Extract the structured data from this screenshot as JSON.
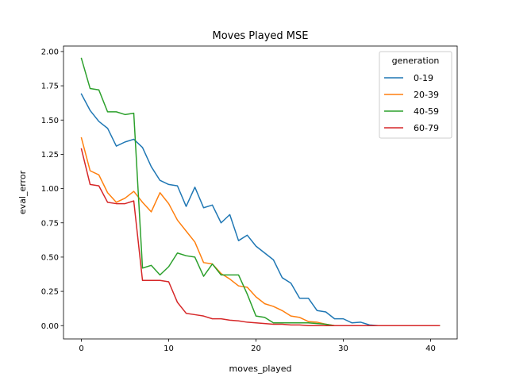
{
  "chart_data": {
    "type": "line",
    "title": "Moves Played MSE",
    "xlabel": "moves_played",
    "ylabel": "eval_error",
    "xlim": [
      -2.05,
      43.05
    ],
    "ylim": [
      -0.097,
      2.04
    ],
    "xticks": [
      0,
      10,
      20,
      30,
      40
    ],
    "xtick_labels": [
      "0",
      "10",
      "20",
      "30",
      "40"
    ],
    "yticks": [
      0,
      0.25,
      0.5,
      0.75,
      1.0,
      1.25,
      1.5,
      1.75,
      2.0
    ],
    "ytick_labels": [
      "0.00",
      "0.25",
      "0.50",
      "0.75",
      "1.00",
      "1.25",
      "1.50",
      "1.75",
      "2.00"
    ],
    "grid": false,
    "legend": {
      "title": "generation",
      "placement": "top-right"
    },
    "x": [
      0,
      1,
      2,
      3,
      4,
      5,
      6,
      7,
      8,
      9,
      10,
      11,
      12,
      13,
      14,
      15,
      16,
      17,
      18,
      19,
      20,
      21,
      22,
      23,
      24,
      25,
      26,
      27,
      28,
      29,
      30,
      31,
      32,
      33,
      34,
      35,
      36,
      37,
      38,
      39,
      40,
      41
    ],
    "series": [
      {
        "name": "0-19",
        "color": "#1f77b4",
        "values": [
          1.69,
          1.57,
          1.49,
          1.44,
          1.31,
          1.34,
          1.36,
          1.3,
          1.16,
          1.06,
          1.03,
          1.02,
          0.87,
          1.01,
          0.86,
          0.88,
          0.75,
          0.81,
          0.62,
          0.66,
          0.58,
          0.53,
          0.48,
          0.35,
          0.31,
          0.2,
          0.2,
          0.11,
          0.1,
          0.05,
          0.05,
          0.02,
          0.025,
          0.005,
          0.0,
          0.0,
          0.0,
          0.0,
          0.0,
          0.0,
          0.0,
          0.0
        ]
      },
      {
        "name": "20-39",
        "color": "#ff7f0e",
        "values": [
          1.37,
          1.13,
          1.1,
          0.97,
          0.9,
          0.93,
          0.98,
          0.9,
          0.83,
          0.97,
          0.89,
          0.77,
          0.69,
          0.61,
          0.46,
          0.45,
          0.38,
          0.34,
          0.29,
          0.28,
          0.21,
          0.16,
          0.14,
          0.11,
          0.07,
          0.06,
          0.03,
          0.025,
          0.01,
          0.0,
          0.0,
          0.0,
          0.0,
          0.0,
          0.0,
          0.0,
          0.0,
          0.0,
          0.0,
          0.0,
          0.0,
          0.0
        ]
      },
      {
        "name": "40-59",
        "color": "#2ca02c",
        "values": [
          1.95,
          1.73,
          1.72,
          1.56,
          1.56,
          1.54,
          1.55,
          0.42,
          0.44,
          0.37,
          0.43,
          0.53,
          0.51,
          0.5,
          0.36,
          0.45,
          0.37,
          0.37,
          0.37,
          0.23,
          0.07,
          0.06,
          0.02,
          0.02,
          0.02,
          0.02,
          0.02,
          0.015,
          0.01,
          0.0,
          0.0,
          0.0,
          0.0,
          0.0,
          0.0,
          0.0,
          0.0,
          0.0,
          0.0,
          0.0,
          0.0,
          0.0
        ]
      },
      {
        "name": "60-79",
        "color": "#d62728",
        "values": [
          1.29,
          1.03,
          1.02,
          0.9,
          0.89,
          0.89,
          0.91,
          0.33,
          0.33,
          0.33,
          0.32,
          0.17,
          0.09,
          0.08,
          0.07,
          0.05,
          0.05,
          0.04,
          0.035,
          0.025,
          0.02,
          0.015,
          0.01,
          0.01,
          0.005,
          0.005,
          0.0,
          0.0,
          0.0,
          0.0,
          0.0,
          0.0,
          0.0,
          0.0,
          0.0,
          0.0,
          0.0,
          0.0,
          0.0,
          0.0,
          0.0,
          0.0
        ]
      }
    ]
  }
}
